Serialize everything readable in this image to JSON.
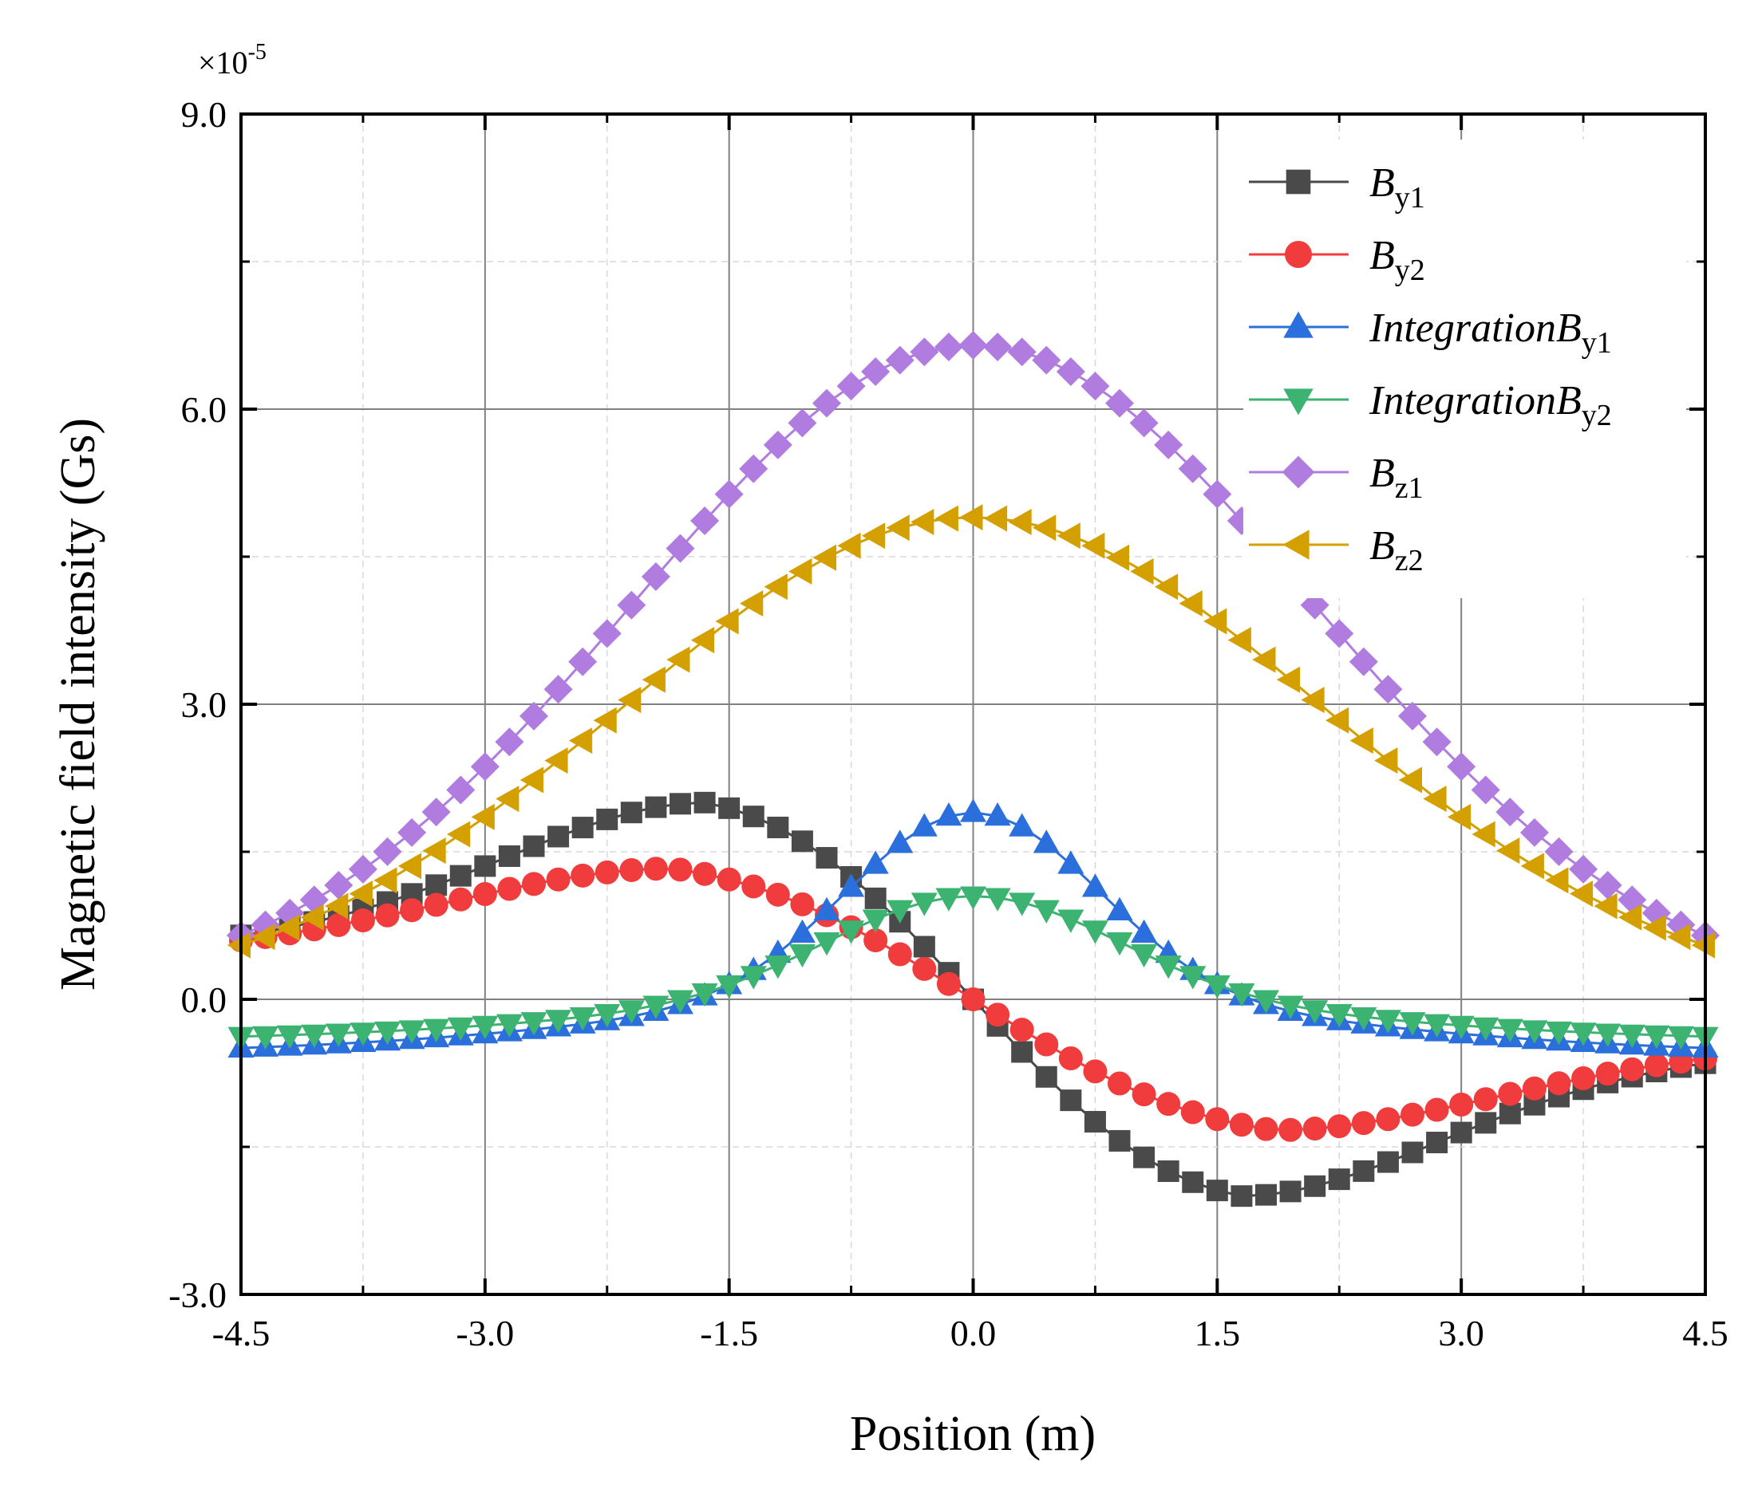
{
  "chart_data": {
    "type": "line",
    "xlabel": "Position (m)",
    "ylabel": "Magnetic field intensity (Gs)",
    "y_multiplier_label": {
      "base": "×10",
      "exp": "-5"
    },
    "xlim": [
      -4.5,
      4.5
    ],
    "ylim": [
      -3.0,
      9.0
    ],
    "x_ticks": [
      -4.5,
      -3.0,
      -1.5,
      0.0,
      1.5,
      3.0,
      4.5
    ],
    "x_tick_labels": [
      "-4.5",
      "-3.0",
      "-1.5",
      "0.0",
      "1.5",
      "3.0",
      "4.5"
    ],
    "y_ticks": [
      -3.0,
      0.0,
      3.0,
      6.0,
      9.0
    ],
    "y_tick_labels": [
      "-3.0",
      "0.0",
      "3.0",
      "6.0",
      "9.0"
    ],
    "grid": true,
    "legend_position": "top-right",
    "series": [
      {
        "name": "B",
        "sub": "y1",
        "color": "#4a4a4a",
        "marker": "square",
        "peak": 2.0,
        "peak_x": -1.65,
        "trough": -2.0,
        "trough_x": 1.65,
        "end_value": -0.65,
        "sample_values": [
          {
            "x": -4.5,
            "y": 0.65
          },
          {
            "x": 0.0,
            "y": 0.0
          },
          {
            "x": 4.5,
            "y": -0.65
          }
        ]
      },
      {
        "name": "B",
        "sub": "y2",
        "color": "#f03c3c",
        "marker": "circle",
        "peak": 1.33,
        "peak_x": -1.85,
        "trough": -1.33,
        "trough_x": 1.85,
        "end_value": -0.6,
        "sample_values": [
          {
            "x": -4.5,
            "y": 0.6
          },
          {
            "x": 0.0,
            "y": 0.0
          },
          {
            "x": 4.5,
            "y": -0.6
          }
        ]
      },
      {
        "name": "Integration",
        "sub_prefix": "B",
        "sub": "y1",
        "color": "#2a6fdb",
        "marker": "triangle-up",
        "peak": 1.9,
        "peak_x": 0.0,
        "min": -0.55,
        "end_value": -0.5
      },
      {
        "name": "Integration",
        "sub_prefix": "B",
        "sub": "y2",
        "color": "#3cb371",
        "marker": "triangle-down",
        "peak": 1.05,
        "peak_x": 0.0,
        "min": -0.42,
        "end_value": -0.35
      },
      {
        "name": "B",
        "sub": "z1",
        "color": "#b07ce0",
        "marker": "diamond",
        "peak": 6.65,
        "peak_x": 0.0,
        "end_value": 0.65
      },
      {
        "name": "B",
        "sub": "z2",
        "color": "#d4a000",
        "marker": "triangle-left",
        "peak": 4.9,
        "peak_x": 0.0,
        "end_value": 0.55
      }
    ]
  }
}
